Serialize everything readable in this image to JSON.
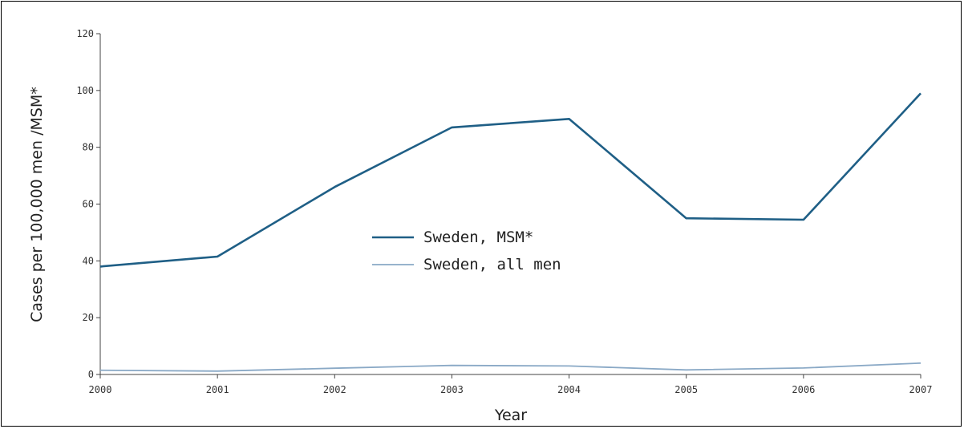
{
  "chart_data": {
    "type": "line",
    "title": "",
    "xlabel": "Year",
    "ylabel": "Cases per 100,000 men /MSM*",
    "x": [
      2000,
      2001,
      2002,
      2003,
      2004,
      2005,
      2006,
      2007
    ],
    "xticks": [
      "2000",
      "2001",
      "2002",
      "2003",
      "2004",
      "2005",
      "2006",
      "2007"
    ],
    "yticks": [
      0,
      20,
      40,
      60,
      80,
      100,
      120
    ],
    "ylim": [
      0,
      120
    ],
    "grid": false,
    "legend_position": "center",
    "series": [
      {
        "name": "Sweden, MSM*",
        "color": "#1f5f86",
        "values": [
          38,
          41.5,
          66,
          87,
          90,
          55,
          54.5,
          99
        ]
      },
      {
        "name": "Sweden, all men",
        "color": "#8aa9c6",
        "values": [
          1.5,
          1.2,
          2.2,
          3.2,
          3.0,
          1.6,
          2.3,
          4.0
        ]
      }
    ]
  }
}
